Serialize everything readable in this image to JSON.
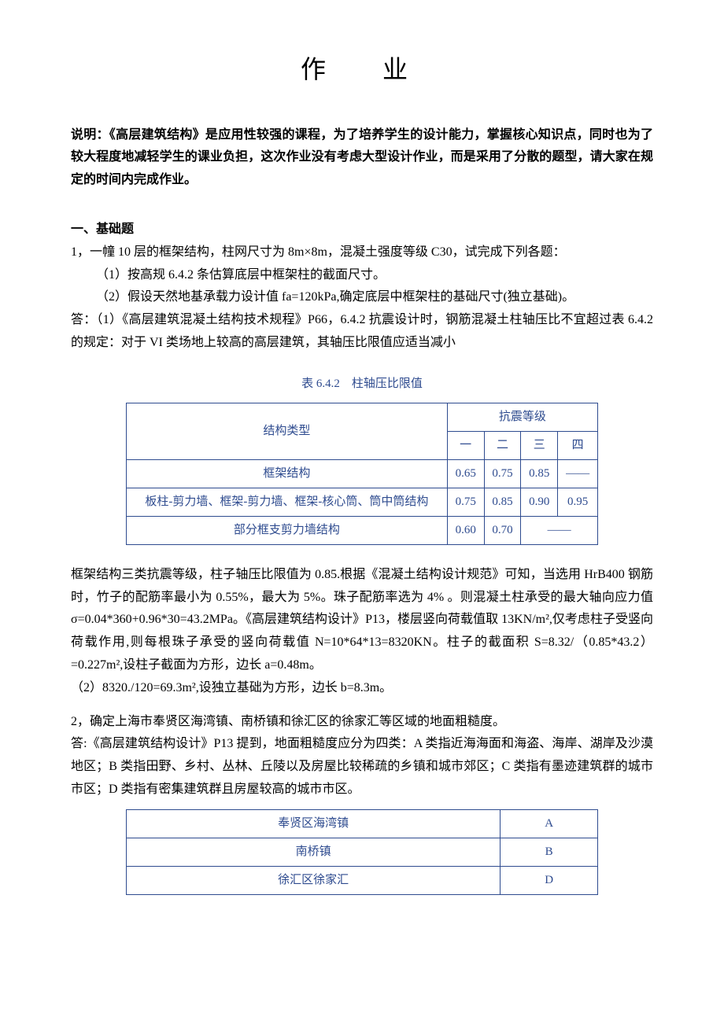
{
  "title": "作　业",
  "intro": "说明：《高层建筑结构》是应用性较强的课程，为了培养学生的设计能力，掌握核心知识点，同时也为了较大程度地减轻学生的课业负担，这次作业没有考虑大型设计作业，而是采用了分散的题型，请大家在规定的时间内完成作业。",
  "section1_header": "一、基础题",
  "q1_line1": "1，一幢 10 层的框架结构，柱网尺寸为 8m×8m，混凝土强度等级 C30，试完成下列各题：",
  "q1_sub1": "（1）按高规 6.4.2 条估算底层中框架柱的截面尺寸。",
  "q1_sub2": "（2）假设天然地基承载力设计值 fa=120kPa,确定底层中框架柱的基础尺寸(独立基础)。",
  "a1_line1": "答：（1）《高层建筑混凝土结构技术规程》P66，6.4.2 抗震设计时，钢筋混凝土柱轴压比不宜超过表 6.4.2 的规定：对于 VI 类场地上较高的高层建筑，其轴压比限值应适当减小",
  "table642_caption": "表 6.4.2　柱轴压比限值",
  "table642": {
    "header_struct": "结构类型",
    "header_level": "抗震等级",
    "cols": [
      "一",
      "二",
      "三",
      "四"
    ],
    "rows": [
      {
        "name": "框架结构",
        "vals": [
          "0.65",
          "0.75",
          "0.85",
          "——"
        ]
      },
      {
        "name": "板柱-剪力墙、框架-剪力墙、框架-核心筒、筒中筒结构",
        "vals": [
          "0.75",
          "0.85",
          "0.90",
          "0.95"
        ]
      },
      {
        "name": "部分框支剪力墙结构",
        "vals": [
          "0.60",
          "0.70",
          "——",
          ""
        ]
      }
    ]
  },
  "a1_para2_l1": "框架结构三类抗震等级，柱子轴压比限值为 0.85.根据《混凝土结构设计规范》可知，当选用 HrB400 钢筋时，竹子的配筋率最小为 0.55%，最大为 5%。珠子配筋率选为 4% 。则混凝土柱承受的最大轴向应力值 σ=0.04*360+0.96*30=43.2MPa。《高层建筑结构设计》P13，楼层竖向荷载值取 13KN/m²,仅考虑柱子受竖向荷载作用,则每根珠子承受的竖向荷载值 N=10*64*13=8320KN。柱子的截面积 S=8.32/（0.85*43.2）=0.227m²,设柱子截面为方形，边长 a=0.48m。",
  "a1_para2_l2": "（2）8320./120=69.3m²,设独立基础为方形，边长 b=8.3m。",
  "q2_line": "2，确定上海市奉贤区海湾镇、南桥镇和徐汇区的徐家汇等区域的地面粗糙度。",
  "a2_line": "答:《高层建筑结构设计》P13 提到，地面粗糙度应分为四类：A 类指近海海面和海盗、海岸、湖岸及沙漠地区；B 类指田野、乡村、丛林、丘陵以及房屋比较稀疏的乡镇和城市郊区；C 类指有墨迹建筑群的城市市区；D 类指有密集建筑群且房屋较高的城市市区。",
  "roughness_table": {
    "rows": [
      [
        "奉贤区海湾镇",
        "A"
      ],
      [
        "南桥镇",
        "B"
      ],
      [
        "徐汇区徐家汇",
        "D"
      ]
    ]
  },
  "colors": {
    "text": "#000000",
    "table_border": "#2e4b8f",
    "table_text": "#2e4b8f",
    "background": "#ffffff"
  }
}
